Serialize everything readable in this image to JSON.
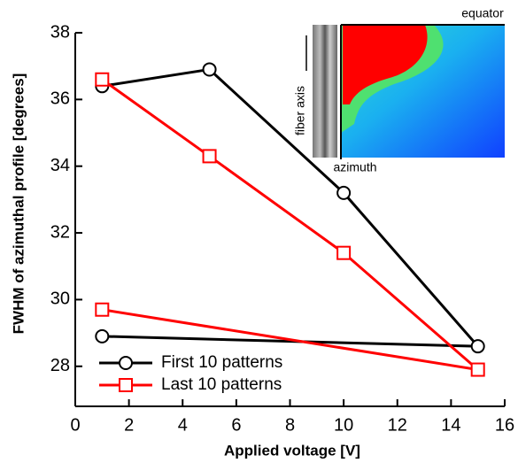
{
  "chart_data": {
    "type": "line",
    "xlabel": "Applied voltage [V]",
    "ylabel": "FWHM of azimuthal profile [degrees]",
    "xlim": [
      0,
      16
    ],
    "xticks": [
      0,
      2,
      4,
      6,
      8,
      10,
      12,
      14,
      16
    ],
    "ylim": [
      26.8,
      38
    ],
    "yticks": [
      28,
      30,
      32,
      34,
      36,
      38
    ],
    "legend": "lower left",
    "series": [
      {
        "name": "First 10 patterns",
        "color": "#000000",
        "marker": "circle",
        "x": [
          1,
          5,
          10,
          15,
          1
        ],
        "values": [
          36.4,
          36.9,
          33.2,
          28.6,
          28.9
        ]
      },
      {
        "name": "Last 10 patterns",
        "color": "#ff0000",
        "marker": "square",
        "x": [
          1,
          5,
          10,
          15,
          1
        ],
        "values": [
          36.6,
          34.3,
          31.4,
          27.9,
          29.7
        ]
      }
    ],
    "inset": {
      "top_label": "equator",
      "side_label": "fiber axis",
      "bottom_label": "azimuth"
    }
  }
}
